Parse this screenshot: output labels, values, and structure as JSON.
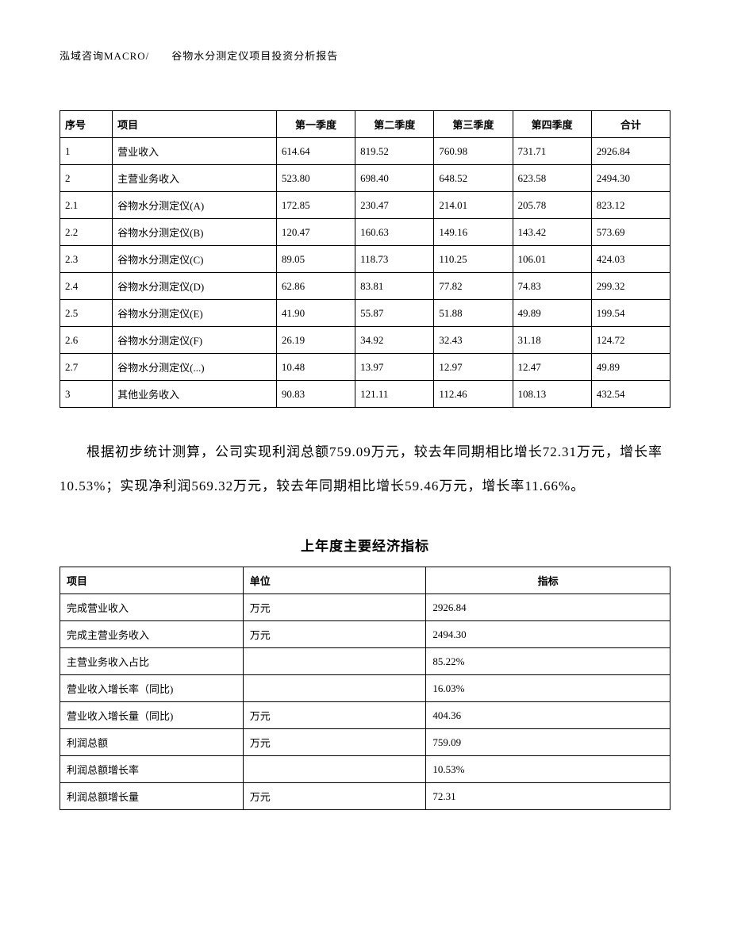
{
  "header": "泓域咨询MACRO/　　谷物水分测定仪项目投资分析报告",
  "table1": {
    "headers": [
      "序号",
      "项目",
      "第一季度",
      "第二季度",
      "第三季度",
      "第四季度",
      "合计"
    ],
    "rows": [
      [
        "1",
        "营业收入",
        "614.64",
        "819.52",
        "760.98",
        "731.71",
        "2926.84"
      ],
      [
        "2",
        "主营业务收入",
        "523.80",
        "698.40",
        "648.52",
        "623.58",
        "2494.30"
      ],
      [
        "2.1",
        "谷物水分测定仪(A)",
        "172.85",
        "230.47",
        "214.01",
        "205.78",
        "823.12"
      ],
      [
        "2.2",
        "谷物水分测定仪(B)",
        "120.47",
        "160.63",
        "149.16",
        "143.42",
        "573.69"
      ],
      [
        "2.3",
        "谷物水分测定仪(C)",
        "89.05",
        "118.73",
        "110.25",
        "106.01",
        "424.03"
      ],
      [
        "2.4",
        "谷物水分测定仪(D)",
        "62.86",
        "83.81",
        "77.82",
        "74.83",
        "299.32"
      ],
      [
        "2.5",
        "谷物水分测定仪(E)",
        "41.90",
        "55.87",
        "51.88",
        "49.89",
        "199.54"
      ],
      [
        "2.6",
        "谷物水分测定仪(F)",
        "26.19",
        "34.92",
        "32.43",
        "31.18",
        "124.72"
      ],
      [
        "2.7",
        "谷物水分测定仪(...)",
        "10.48",
        "13.97",
        "12.97",
        "12.47",
        "49.89"
      ],
      [
        "3",
        "其他业务收入",
        "90.83",
        "121.11",
        "112.46",
        "108.13",
        "432.54"
      ]
    ]
  },
  "paragraph": "根据初步统计测算，公司实现利润总额759.09万元，较去年同期相比增长72.31万元，增长率10.53%；实现净利润569.32万元，较去年同期相比增长59.46万元，增长率11.66%。",
  "subtitle": "上年度主要经济指标",
  "table2": {
    "headers": [
      "项目",
      "单位",
      "指标"
    ],
    "rows": [
      [
        "完成营业收入",
        "万元",
        "2926.84"
      ],
      [
        "完成主营业务收入",
        "万元",
        "2494.30"
      ],
      [
        "主营业务收入占比",
        "",
        "85.22%"
      ],
      [
        "营业收入增长率（同比)",
        "",
        "16.03%"
      ],
      [
        "营业收入增长量（同比)",
        "万元",
        "404.36"
      ],
      [
        "利润总额",
        "万元",
        "759.09"
      ],
      [
        "利润总额增长率",
        "",
        "10.53%"
      ],
      [
        "利润总额增长量",
        "万元",
        "72.31"
      ]
    ]
  }
}
